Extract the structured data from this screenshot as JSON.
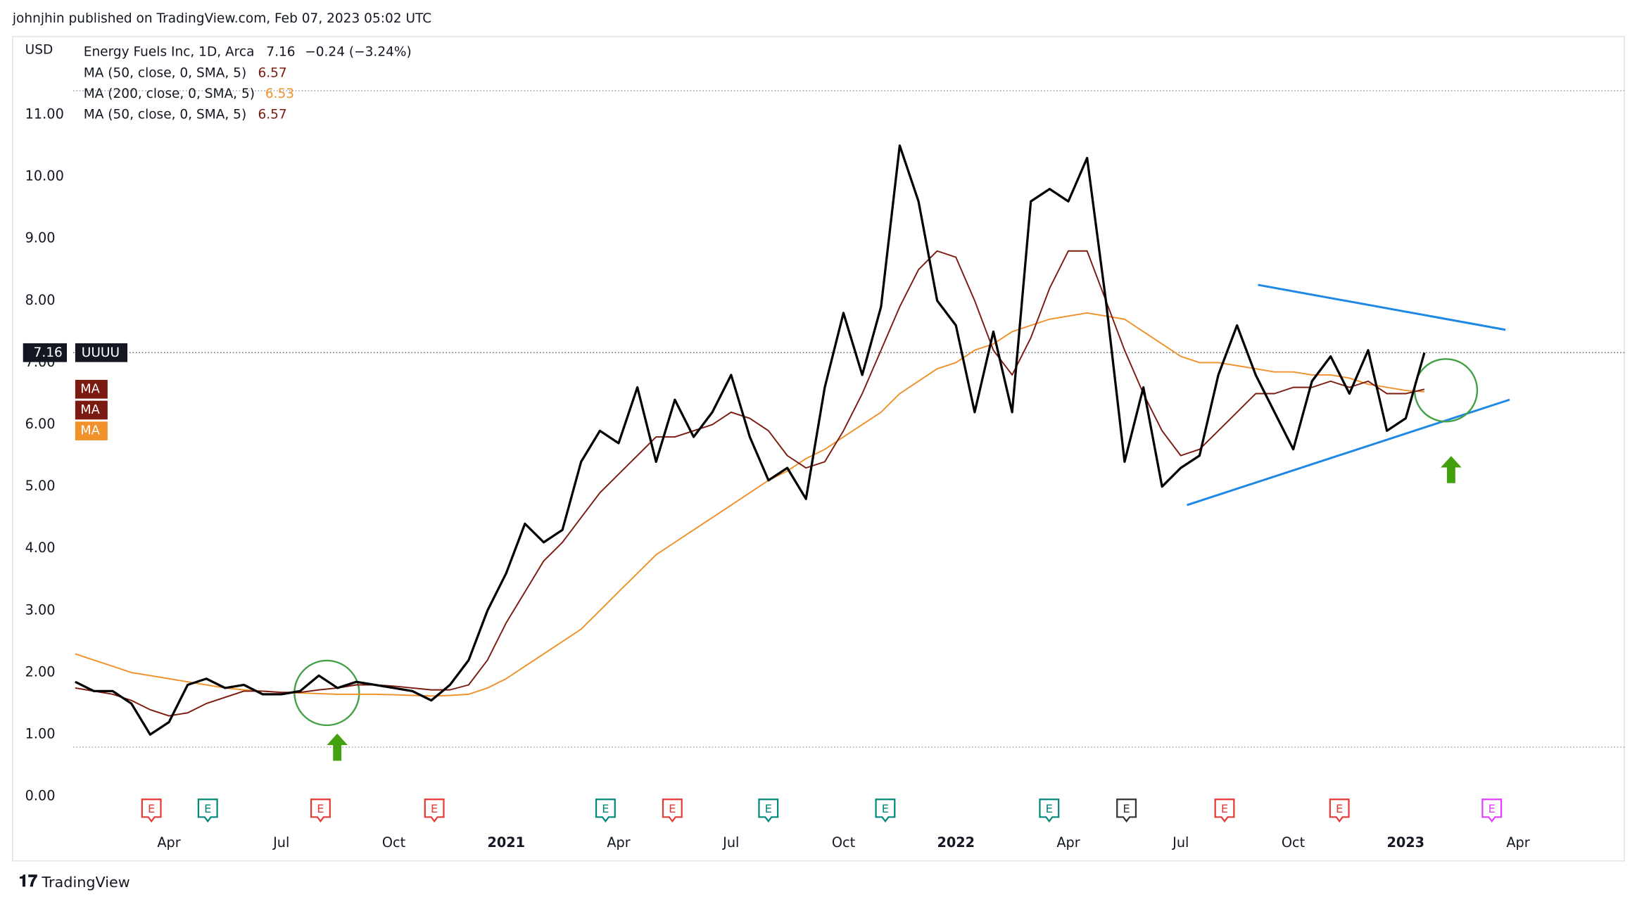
{
  "header": {
    "published": "johnjhin published on TradingView.com, Feb 07, 2023 05:02 UTC"
  },
  "footer": {
    "brand": "TradingView"
  },
  "chart_data": {
    "type": "line",
    "currency": "USD",
    "symbol": "Energy Fuels Inc, 1D, Arca",
    "change": "−0.24 (−3.24%)",
    "ticker": "UUUU",
    "badge_text": "MA",
    "event_text": "E",
    "categories": [
      null,
      null,
      null,
      null,
      null,
      "Apr",
      null,
      null,
      null,
      null,
      null,
      "Jul",
      null,
      null,
      null,
      null,
      null,
      "Oct",
      null,
      null,
      null,
      null,
      null,
      "2021",
      null,
      null,
      null,
      null,
      null,
      "Apr",
      null,
      null,
      null,
      null,
      null,
      "Jul",
      null,
      null,
      null,
      null,
      null,
      "Oct",
      null,
      null,
      null,
      null,
      null,
      "2022",
      null,
      null,
      null,
      null,
      null,
      "Apr",
      null,
      null,
      null,
      null,
      null,
      "Jul",
      null,
      null,
      null,
      null,
      null,
      "Oct",
      null,
      null,
      null,
      null,
      null,
      "2023",
      null,
      null,
      null,
      null,
      null,
      "Apr",
      null,
      null,
      null,
      null,
      null
    ],
    "series": [
      {
        "name": "Energy Fuels Inc, 1D, Arca",
        "color": "#000000",
        "values": [
          1.85,
          1.7,
          1.7,
          1.5,
          1.0,
          1.2,
          1.8,
          1.9,
          1.75,
          1.8,
          1.65,
          1.65,
          1.7,
          1.95,
          1.75,
          1.85,
          1.8,
          1.75,
          1.7,
          1.55,
          1.8,
          2.2,
          3.0,
          3.6,
          4.4,
          4.1,
          4.3,
          5.4,
          5.9,
          5.7,
          6.6,
          5.4,
          6.4,
          5.8,
          6.2,
          6.8,
          5.8,
          5.1,
          5.3,
          4.8,
          6.6,
          7.8,
          6.8,
          7.9,
          10.5,
          9.6,
          8.0,
          7.6,
          6.2,
          7.5,
          6.2,
          9.6,
          9.8,
          9.6,
          10.3,
          8.0,
          5.4,
          6.6,
          5.0,
          5.3,
          5.5,
          6.8,
          7.6,
          6.8,
          6.2,
          5.6,
          6.7,
          7.1,
          6.5,
          7.2,
          5.9,
          6.1,
          7.16,
          null,
          null,
          null,
          null,
          null,
          null,
          null,
          null,
          null,
          null
        ]
      },
      {
        "name": "MA (50, close, 0, SMA, 5)",
        "color": "#7b1a0e",
        "values": [
          1.75,
          1.7,
          1.65,
          1.55,
          1.4,
          1.3,
          1.35,
          1.5,
          1.6,
          1.7,
          1.7,
          1.68,
          1.68,
          1.72,
          1.75,
          1.8,
          1.8,
          1.78,
          1.75,
          1.72,
          1.72,
          1.8,
          2.2,
          2.8,
          3.3,
          3.8,
          4.1,
          4.5,
          4.9,
          5.2,
          5.5,
          5.8,
          5.8,
          5.9,
          6.0,
          6.2,
          6.1,
          5.9,
          5.5,
          5.3,
          5.4,
          5.9,
          6.5,
          7.2,
          7.9,
          8.5,
          8.8,
          8.7,
          8.0,
          7.2,
          6.8,
          7.4,
          8.2,
          8.8,
          8.8,
          8.0,
          7.2,
          6.5,
          5.9,
          5.5,
          5.6,
          5.9,
          6.2,
          6.5,
          6.5,
          6.6,
          6.6,
          6.7,
          6.6,
          6.7,
          6.5,
          6.5,
          6.57,
          null,
          null,
          null,
          null,
          null,
          null,
          null,
          null,
          null,
          null
        ]
      },
      {
        "name": "MA (200, close, 0, SMA, 5)",
        "color": "#f0912b",
        "values": [
          2.3,
          2.2,
          2.1,
          2.0,
          1.95,
          1.9,
          1.85,
          1.8,
          1.75,
          1.72,
          1.7,
          1.68,
          1.67,
          1.66,
          1.65,
          1.65,
          1.65,
          1.64,
          1.63,
          1.62,
          1.63,
          1.65,
          1.75,
          1.9,
          2.1,
          2.3,
          2.5,
          2.7,
          3.0,
          3.3,
          3.6,
          3.9,
          4.1,
          4.3,
          4.5,
          4.7,
          4.9,
          5.1,
          5.25,
          5.45,
          5.6,
          5.8,
          6.0,
          6.2,
          6.5,
          6.7,
          6.9,
          7.0,
          7.2,
          7.3,
          7.5,
          7.6,
          7.7,
          7.75,
          7.8,
          7.75,
          7.7,
          7.5,
          7.3,
          7.1,
          7.0,
          7.0,
          6.95,
          6.9,
          6.85,
          6.85,
          6.8,
          6.8,
          6.75,
          6.65,
          6.6,
          6.55,
          6.53,
          null,
          null,
          null,
          null,
          null,
          null,
          null,
          null,
          null,
          null
        ]
      }
    ],
    "events": [
      {
        "color": "#e53935"
      },
      {
        "color": "#00897b"
      },
      {
        "color": "#e53935"
      },
      {
        "color": "#e53935"
      },
      {
        "color": "#00897b"
      },
      {
        "color": "#e53935"
      },
      {
        "color": "#00897b"
      },
      {
        "color": "#00897b"
      },
      {
        "color": "#00897b"
      },
      {
        "color": "#333333"
      },
      {
        "color": "#e53935"
      },
      {
        "color": "#e53935"
      },
      {
        "color": "#e040fb"
      }
    ],
    "ylim": [
      -0.45,
      12.26
    ],
    "yticks": [
      {
        "value": 0,
        "label": "0.00"
      },
      {
        "value": 1,
        "label": "1.00"
      },
      {
        "value": 2,
        "label": "2.00"
      },
      {
        "value": 3,
        "label": "3.00"
      },
      {
        "value": 4,
        "label": "4.00"
      },
      {
        "value": 5,
        "label": "5.00"
      },
      {
        "value": 6,
        "label": "6.00"
      },
      {
        "value": 7,
        "label": "7.00"
      },
      {
        "value": 8,
        "label": "8.00"
      },
      {
        "value": 9,
        "label": "9.00"
      },
      {
        "value": 10,
        "label": "10.00"
      },
      {
        "value": 11,
        "label": "11.00"
      }
    ],
    "grid": false
  }
}
